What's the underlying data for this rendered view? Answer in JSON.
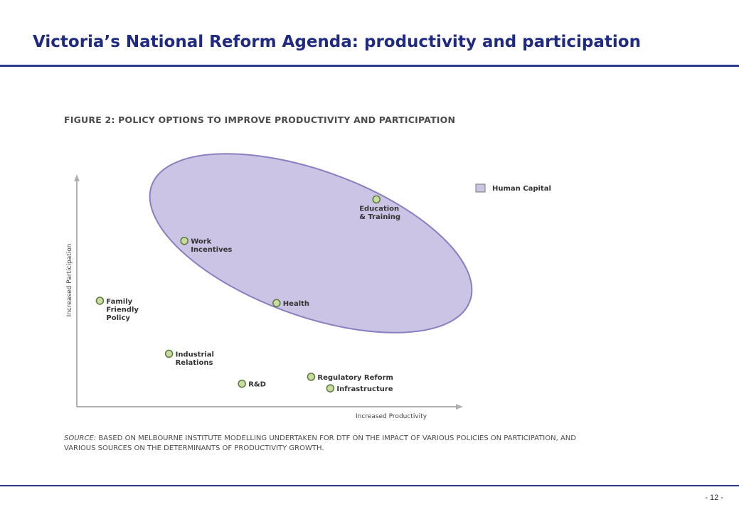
{
  "slide": {
    "title": "Victoria’s National Reform Agenda: productivity and participation",
    "page_number": "- 12 -"
  },
  "figure": {
    "title": "FIGURE 2: POLICY OPTIONS TO IMPROVE PRODUCTIVITY AND PARTICIPATION",
    "source_label": "SOURCE:",
    "source_text": " BASED ON MELBOURNE INSTITUTE MODELLING UNDERTAKEN FOR DTF ON THE IMPACT OF VARIOUS POLICIES ON PARTICIPATION, AND VARIOUS SOURCES ON THE DETERMINANTS OF PRODUCTIVITY GROWTH."
  },
  "chart_data": {
    "type": "scatter",
    "title": "FIGURE 2: POLICY OPTIONS TO IMPROVE PRODUCTIVITY AND PARTICIPATION",
    "xlabel": "Increased Productivity",
    "ylabel": "Increased Participation",
    "xlim": [
      0,
      100
    ],
    "ylim": [
      0,
      100
    ],
    "ticks": "none",
    "grid": false,
    "legend": {
      "placement": "top-right",
      "entries": [
        {
          "name": "Human Capital",
          "color": "#cbc4e4"
        }
      ]
    },
    "marker_color": "#c8dca0",
    "marker_edge": "#5b7a3a",
    "group_fill": "#cbc4e4",
    "group_stroke": "#8a7fc0",
    "points": [
      {
        "label": [
          "Education",
          "& Training"
        ],
        "x": 78,
        "y": 90,
        "group": "Human Capital",
        "label_side": "below"
      },
      {
        "label": [
          "Work",
          "Incentives"
        ],
        "x": 28,
        "y": 72,
        "group": "Human Capital",
        "label_side": "right"
      },
      {
        "label": [
          "Health"
        ],
        "x": 52,
        "y": 45,
        "group": "Human Capital",
        "label_side": "right"
      },
      {
        "label": [
          "Family",
          "Friendly",
          "Policy"
        ],
        "x": 6,
        "y": 46,
        "group": null,
        "label_side": "right"
      },
      {
        "label": [
          "Industrial",
          "Relations"
        ],
        "x": 24,
        "y": 23,
        "group": null,
        "label_side": "right"
      },
      {
        "label": [
          "R&D"
        ],
        "x": 43,
        "y": 10,
        "group": null,
        "label_side": "right"
      },
      {
        "label": [
          "Regulatory Reform"
        ],
        "x": 61,
        "y": 13,
        "group": null,
        "label_side": "right"
      },
      {
        "label": [
          "Infrastructure"
        ],
        "x": 66,
        "y": 8,
        "group": null,
        "label_side": "right"
      }
    ]
  }
}
